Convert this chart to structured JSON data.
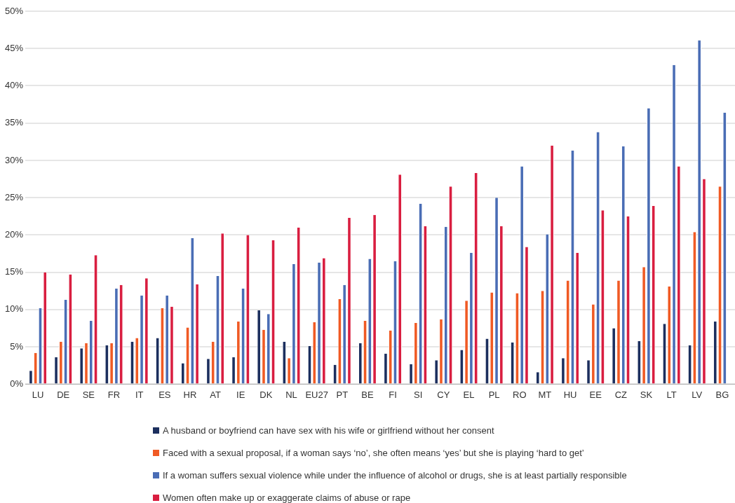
{
  "chart_data": {
    "type": "bar",
    "categories": [
      "LU",
      "DE",
      "SE",
      "FR",
      "IT",
      "ES",
      "HR",
      "AT",
      "IE",
      "DK",
      "NL",
      "EU27",
      "PT",
      "BE",
      "FI",
      "SI",
      "CY",
      "EL",
      "PL",
      "RO",
      "MT",
      "HU",
      "EE",
      "CZ",
      "SK",
      "LT",
      "LV",
      "BG"
    ],
    "series": [
      {
        "name": "A husband or boyfriend can have sex with his wife or girlfriend without her consent",
        "color": "#1c2f5e",
        "values": [
          1.8,
          3.6,
          4.8,
          5.2,
          5.7,
          6.2,
          2.8,
          3.4,
          3.6,
          9.9,
          5.7,
          5.1,
          2.6,
          5.5,
          4.1,
          2.7,
          3.2,
          4.6,
          6.1,
          5.6,
          1.6,
          3.5,
          3.2,
          7.5,
          5.8,
          8.1,
          5.2,
          8.4
        ]
      },
      {
        "name": "Faced with a sexual proposal, if a woman says ‘no’, she often means ‘yes’ but she is playing ‘hard to get’",
        "color": "#f05a24",
        "values": [
          4.2,
          5.7,
          5.5,
          5.5,
          6.2,
          10.2,
          7.6,
          5.7,
          8.4,
          7.3,
          3.5,
          8.3,
          11.4,
          8.5,
          7.2,
          8.2,
          8.7,
          11.2,
          12.3,
          12.2,
          12.5,
          13.9,
          10.7,
          13.9,
          15.7,
          13.1,
          20.4,
          26.5
        ]
      },
      {
        "name": "If a woman suffers sexual violence while under the influence of alcohol or drugs, she is at least partially responsible",
        "color": "#4a6db5",
        "values": [
          10.2,
          11.3,
          8.5,
          12.8,
          11.9,
          11.9,
          19.6,
          14.5,
          12.8,
          9.4,
          16.1,
          16.3,
          13.3,
          16.8,
          16.5,
          24.2,
          21.1,
          17.6,
          25.0,
          29.2,
          20.1,
          31.3,
          33.8,
          31.9,
          37.0,
          42.8,
          46.1,
          36.4
        ]
      },
      {
        "name": "Women often make up or exaggerate claims of abuse or rape",
        "color": "#d91e40",
        "values": [
          15.0,
          14.7,
          17.3,
          13.3,
          14.2,
          10.4,
          13.4,
          20.2,
          20.0,
          19.3,
          21.0,
          16.9,
          22.3,
          22.7,
          28.1,
          21.2,
          26.5,
          28.3,
          21.2,
          18.4,
          32.0,
          17.6,
          23.3,
          22.5,
          23.9,
          29.2,
          27.5,
          null
        ]
      }
    ],
    "ylim": [
      0,
      50
    ],
    "yticks": [
      {
        "value": 0,
        "label": "0%"
      },
      {
        "value": 5,
        "label": "5%"
      },
      {
        "value": 10,
        "label": "10%"
      },
      {
        "value": 15,
        "label": "15%"
      },
      {
        "value": 20,
        "label": "20%"
      },
      {
        "value": 25,
        "label": "25%"
      },
      {
        "value": 30,
        "label": "30%"
      },
      {
        "value": 35,
        "label": "35%"
      },
      {
        "value": 40,
        "label": "40%"
      },
      {
        "value": 45,
        "label": "45%"
      },
      {
        "value": 50,
        "label": "50%"
      }
    ],
    "grid": "y",
    "legend": "bottom"
  }
}
